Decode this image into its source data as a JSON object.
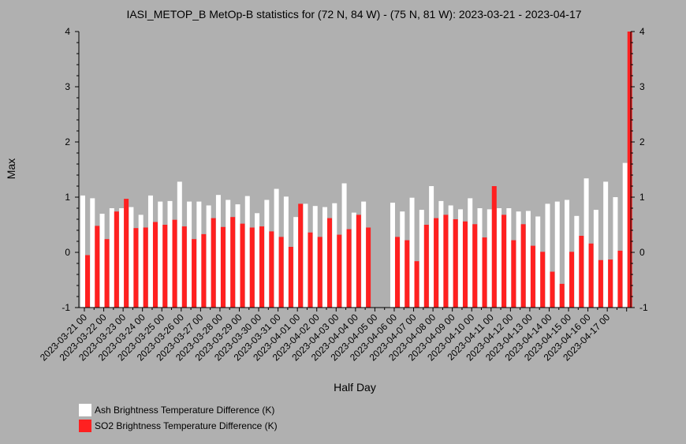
{
  "chart_data": {
    "type": "bar",
    "title": "IASI_METOP_B MetOp-B statistics for (72 N, 84 W) - (75 N, 81 W): 2023-03-21 - 2023-04-17",
    "xlabel": "Half Day",
    "ylabel": "Max",
    "ylim": [
      -1,
      4
    ],
    "yticks": [
      -1,
      0,
      1,
      2,
      3,
      4
    ],
    "xtick_labels": [
      "2023-03-21 00",
      "2023-03-22 00",
      "2023-03-23 00",
      "2023-03-24 00",
      "2023-03-25 00",
      "2023-03-26 00",
      "2023-03-27 00",
      "2023-03-28 00",
      "2023-03-29 00",
      "2023-03-30 00",
      "2023-03-31 00",
      "2023-04-01 00",
      "2023-04-02 00",
      "2023-04-03 00",
      "2023-04-04 00",
      "2023-04-05 00",
      "2023-04-06 00",
      "2023-04-07 00",
      "2023-04-08 00",
      "2023-04-09 00",
      "2023-04-10 00",
      "2023-04-11 00",
      "2023-04-12 00",
      "2023-04-13 00",
      "2023-04-14 00",
      "2023-04-15 00",
      "2023-04-16 00",
      "2023-04-17 00"
    ],
    "grid": false,
    "legend_position": "bottom-left",
    "series": [
      {
        "name": "Ash Brightness Temperature Difference (K)",
        "color": "#ffffff",
        "values": [
          1.03,
          0.98,
          0.7,
          0.8,
          0.8,
          0.82,
          0.68,
          1.03,
          0.92,
          0.93,
          1.28,
          0.92,
          0.92,
          0.85,
          1.04,
          0.95,
          0.87,
          1.02,
          0.71,
          0.95,
          1.15,
          1.01,
          0.64,
          0.88,
          0.84,
          0.82,
          0.89,
          1.25,
          0.72,
          0.92,
          null,
          null,
          0.9,
          0.74,
          0.99,
          0.77,
          1.2,
          0.93,
          0.85,
          0.78,
          0.98,
          0.8,
          0.78,
          0.8,
          0.8,
          0.74,
          0.75,
          0.65,
          0.88,
          0.92,
          0.95,
          0.66,
          1.34,
          0.77,
          1.28,
          1.0,
          1.62
        ]
      },
      {
        "name": "SO2 Brightness Temperature Difference (K)",
        "color": "#ff2020",
        "values": [
          -0.05,
          0.48,
          0.24,
          0.74,
          0.97,
          0.44,
          0.45,
          0.55,
          0.5,
          0.59,
          0.47,
          0.24,
          0.33,
          0.62,
          0.46,
          0.64,
          0.52,
          0.45,
          0.47,
          0.38,
          0.28,
          0.1,
          0.88,
          0.36,
          0.28,
          0.62,
          0.32,
          0.42,
          0.68,
          0.45,
          null,
          null,
          0.28,
          0.22,
          -0.16,
          0.5,
          0.62,
          0.68,
          0.6,
          0.56,
          0.51,
          0.27,
          1.2,
          0.68,
          0.22,
          0.51,
          0.12,
          0.01,
          -0.35,
          -0.57,
          0.01,
          0.3,
          0.16,
          -0.14,
          -0.13,
          0.03,
          4.04
        ]
      }
    ]
  }
}
